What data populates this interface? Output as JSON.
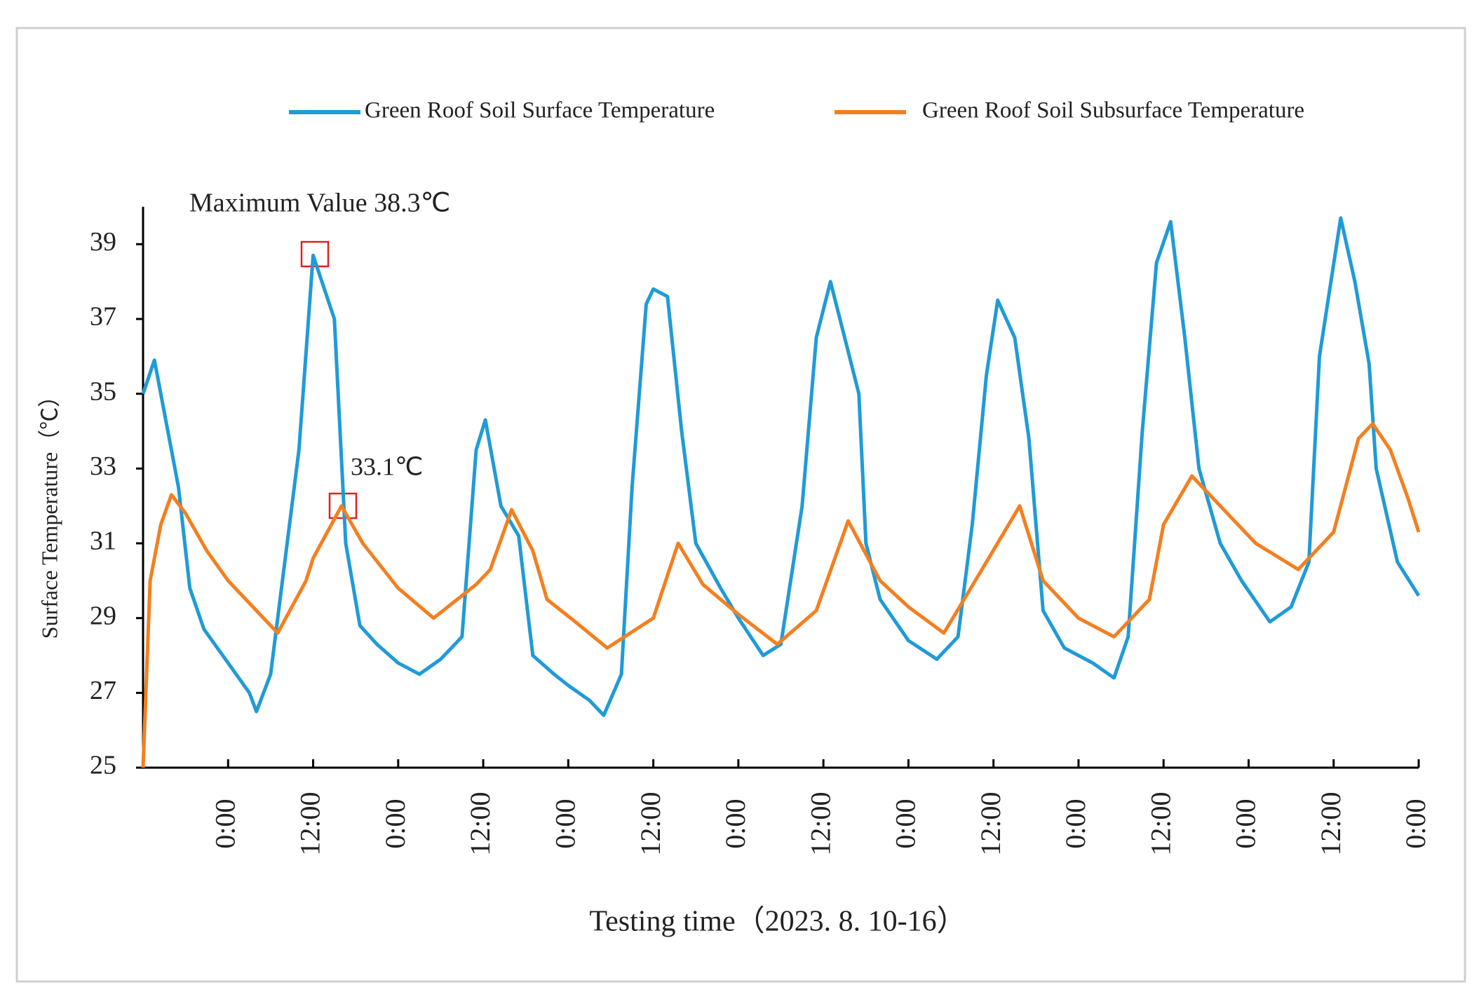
{
  "chart_data": {
    "type": "line",
    "y_label": "Surface Temperature（℃）",
    "x_label": "Testing time（2023. 8. 10-16）",
    "annotations": [
      "Maximum Value  38.3℃",
      "33.1℃"
    ],
    "xlim": [
      0,
      180
    ],
    "xticks": [
      {
        "value": 12,
        "label": "0:00"
      },
      {
        "value": 24,
        "label": "12:00"
      },
      {
        "value": 36,
        "label": "0:00"
      },
      {
        "value": 48,
        "label": "12:00"
      },
      {
        "value": 60,
        "label": "0:00"
      },
      {
        "value": 72,
        "label": "12:00"
      },
      {
        "value": 84,
        "label": "0:00"
      },
      {
        "value": 96,
        "label": "12:00"
      },
      {
        "value": 108,
        "label": "0:00"
      },
      {
        "value": 120,
        "label": "12:00"
      },
      {
        "value": 132,
        "label": "0:00"
      },
      {
        "value": 144,
        "label": "12:00"
      },
      {
        "value": 156,
        "label": "0:00"
      },
      {
        "value": 168,
        "label": "12:00"
      },
      {
        "value": 180,
        "label": "0:00"
      }
    ],
    "ylim": [
      25,
      40
    ],
    "yticks": [
      25,
      27,
      29,
      31,
      33,
      35,
      37,
      39
    ],
    "legend": "top",
    "series": [
      {
        "name": "Green Roof Soil Surface Temperature",
        "color": "#1f9bd7",
        "x": [
          0,
          1.6,
          5,
          6.6,
          8.6,
          12,
          15,
          16,
          18,
          20,
          22,
          24,
          27,
          28.6,
          30.6,
          33,
          36,
          39,
          42,
          45,
          47,
          48.3,
          50.5,
          53,
          55,
          58,
          60,
          63,
          65,
          67.5,
          69,
          71,
          72,
          74,
          76,
          78,
          81.5,
          84,
          87.5,
          90,
          93,
          95,
          97,
          99,
          101,
          102,
          104,
          108,
          112,
          115,
          117,
          119,
          120.6,
          123,
          125,
          127,
          130,
          134,
          137,
          139,
          141,
          143,
          145,
          147,
          149,
          152,
          155,
          159,
          162,
          164.5,
          166,
          169,
          171,
          173,
          174,
          177,
          180
        ],
        "values": [
          35,
          35.9,
          32.5,
          29.8,
          28.7,
          27.8,
          27,
          26.5,
          27.5,
          30.5,
          33.5,
          38.7,
          37,
          31,
          28.8,
          28.3,
          27.8,
          27.5,
          27.9,
          28.5,
          33.5,
          34.3,
          32,
          31.2,
          28,
          27.5,
          27.2,
          26.8,
          26.4,
          27.5,
          32.5,
          37.4,
          37.8,
          37.6,
          34,
          31,
          29.8,
          29,
          28,
          28.3,
          32,
          36.5,
          38,
          36.5,
          35,
          31,
          29.5,
          28.4,
          27.9,
          28.5,
          31.5,
          35.5,
          37.5,
          36.5,
          33.8,
          29.2,
          28.2,
          27.8,
          27.4,
          28.5,
          34,
          38.5,
          39.6,
          36.5,
          33,
          31,
          30,
          28.9,
          29.3,
          30.5,
          36,
          39.7,
          38,
          35.8,
          33,
          30.5,
          29.6
        ]
      },
      {
        "name": "Green Roof Soil Subsurface Temperature",
        "color": "#f47f20",
        "x": [
          0,
          1,
          2.5,
          4,
          6,
          9,
          12,
          16,
          19,
          23,
          24,
          28,
          31,
          36,
          41,
          47,
          49,
          52,
          55,
          57,
          61,
          65.5,
          72,
          75.5,
          79,
          84,
          89.5,
          95,
          99.5,
          104,
          108,
          113,
          119,
          123.7,
          127,
          132,
          137,
          142,
          144,
          148,
          153,
          157,
          163,
          168,
          171.5,
          173.5,
          176,
          178.5,
          180
        ],
        "values": [
          25,
          30,
          31.5,
          32.3,
          31.8,
          30.8,
          30,
          29.2,
          28.6,
          30,
          30.6,
          32,
          31,
          29.8,
          29,
          29.9,
          30.3,
          31.9,
          30.8,
          29.5,
          28.9,
          28.2,
          29,
          31,
          29.9,
          29.1,
          28.3,
          29.2,
          31.6,
          30,
          29.3,
          28.6,
          30.5,
          32,
          30,
          29,
          28.5,
          29.5,
          31.5,
          32.8,
          31.8,
          31,
          30.3,
          31.3,
          33.8,
          34.2,
          33.5,
          32.2,
          31.3
        ]
      }
    ]
  }
}
